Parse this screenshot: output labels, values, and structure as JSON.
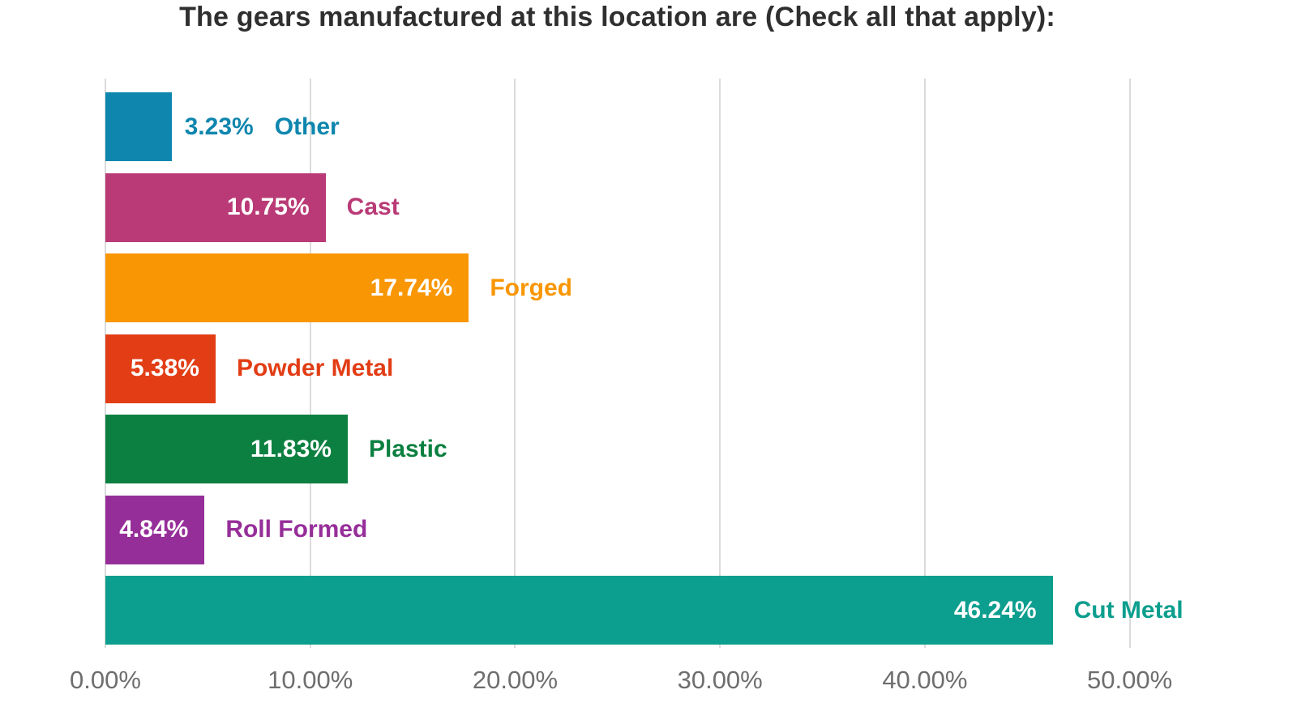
{
  "chart_data": {
    "type": "bar",
    "orientation": "horizontal",
    "title": "The gears manufactured at this location are (Check all that apply):",
    "categories": [
      "Other",
      "Cast",
      "Forged",
      "Powder Metal",
      "Plastic",
      "Roll Formed",
      "Cut Metal"
    ],
    "values": [
      3.23,
      10.75,
      17.74,
      5.38,
      11.83,
      4.84,
      46.24
    ],
    "value_labels": [
      "3.23%",
      "10.75%",
      "17.74%",
      "5.38%",
      "11.83%",
      "4.84%",
      "46.24%"
    ],
    "bar_colors": [
      "#0E86AE",
      "#B93A76",
      "#F99603",
      "#E23D15",
      "#0C8040",
      "#962E99",
      "#0C9E8E"
    ],
    "x_ticks": [
      0,
      10,
      20,
      30,
      40,
      50
    ],
    "x_tick_labels": [
      "0.00%",
      "10.00%",
      "20.00%",
      "30.00%",
      "40.00%",
      "50.00%"
    ],
    "xlim": [
      0,
      56.9
    ],
    "grid": true,
    "legend": false,
    "value_label_color_inside_bar": "#FFFFFF",
    "gridline_color": "#DBDBDB",
    "axis_text_color": "#6E6E6E",
    "title_color": "#2F2F2F"
  }
}
